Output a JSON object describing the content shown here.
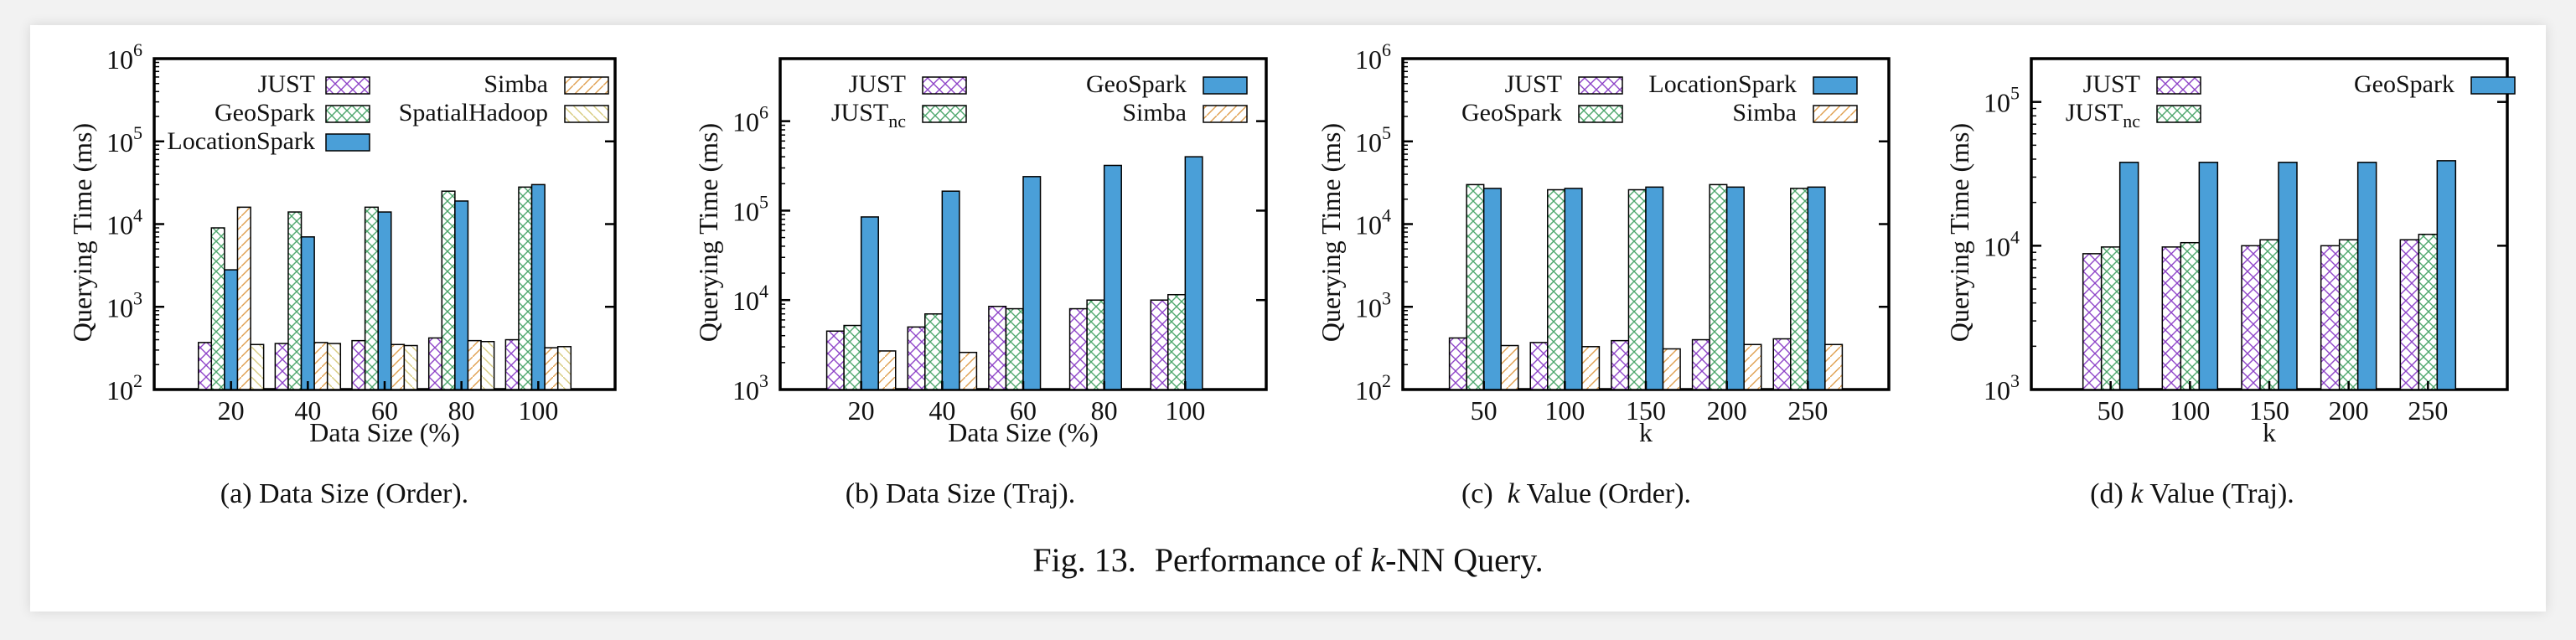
{
  "figure_caption": {
    "prefix": "Fig. 13.",
    "text_before": "Performance of ",
    "italic": "k",
    "text_after": "-NN Query."
  },
  "colors": {
    "JUST": "#8e44c8",
    "JUST_nc": "#4fa86e",
    "GeoSpark": "#4fa86e",
    "LocationSpark": "#4a9fd8",
    "Simba": "#e0a050",
    "SpatialHadoop": "#d8cc80",
    "geospark_fill_bd": "#4a9fd8"
  },
  "chart_data": [
    {
      "type": "bar",
      "subcaption": "(a)  Data Size (Order).",
      "xlabel": "Data Size (%)",
      "ylabel": "Querying Time (ms)",
      "yscale": "log",
      "ylim": [
        100,
        1000000
      ],
      "yticks": [
        {
          "base": "10",
          "exp": "2"
        },
        {
          "base": "10",
          "exp": "3"
        },
        {
          "base": "10",
          "exp": "4"
        },
        {
          "base": "10",
          "exp": "5"
        },
        {
          "base": "10",
          "exp": "6"
        }
      ],
      "categories": [
        "20",
        "40",
        "60",
        "80",
        "100"
      ],
      "series": [
        {
          "name": "JUST",
          "style": "hatch-purple",
          "values": [
            370,
            360,
            390,
            420,
            400
          ]
        },
        {
          "name": "GeoSpark",
          "style": "hatch-green",
          "values": [
            9000,
            14000,
            16000,
            25000,
            28000
          ]
        },
        {
          "name": "LocationSpark",
          "style": "solid-blue",
          "values": [
            2800,
            7000,
            14000,
            19000,
            30000
          ]
        },
        {
          "name": "Simba",
          "style": "hatch-orange",
          "values": [
            16000,
            370,
            350,
            390,
            320
          ]
        },
        {
          "name": "SpatialHadoop",
          "style": "hatch-yellow",
          "values": [
            350,
            360,
            340,
            380,
            330
          ]
        }
      ],
      "legend": "top"
    },
    {
      "type": "bar",
      "subcaption": "(b)  Data Size (Traj).",
      "xlabel": "Data Size (%)",
      "ylabel": "Querying Time (ms)",
      "yscale": "log",
      "ylim": [
        1000,
        5000000
      ],
      "yticks": [
        {
          "base": "10",
          "exp": "3"
        },
        {
          "base": "10",
          "exp": "4"
        },
        {
          "base": "10",
          "exp": "5"
        },
        {
          "base": "10",
          "exp": "6"
        }
      ],
      "categories": [
        "20",
        "40",
        "60",
        "80",
        "100"
      ],
      "series": [
        {
          "name": "JUST",
          "style": "hatch-purple",
          "values": [
            4500,
            5000,
            8500,
            8000,
            10000
          ]
        },
        {
          "name": "JUSTnc",
          "sub": "nc",
          "style": "hatch-green",
          "values": [
            5200,
            7000,
            8000,
            10000,
            11500
          ]
        },
        {
          "name": "GeoSpark",
          "style": "solid-blue",
          "values": [
            85000,
            165000,
            240000,
            320000,
            400000
          ]
        },
        {
          "name": "Simba",
          "style": "hatch-orange",
          "values": [
            2700,
            2600,
            null,
            null,
            null
          ]
        }
      ],
      "legend": "top"
    },
    {
      "type": "bar",
      "subcaption_prefix": "(c)  ",
      "subcaption_italic": "k",
      "subcaption_rest": "  Value (Order).",
      "xlabel": "k",
      "ylabel": "Querying Time (ms)",
      "yscale": "log",
      "ylim": [
        100,
        1000000
      ],
      "yticks": [
        {
          "base": "10",
          "exp": "2"
        },
        {
          "base": "10",
          "exp": "3"
        },
        {
          "base": "10",
          "exp": "4"
        },
        {
          "base": "10",
          "exp": "5"
        },
        {
          "base": "10",
          "exp": "6"
        }
      ],
      "categories": [
        "50",
        "100",
        "150",
        "200",
        "250"
      ],
      "series": [
        {
          "name": "JUST",
          "style": "hatch-purple",
          "values": [
            420,
            370,
            390,
            400,
            410
          ]
        },
        {
          "name": "GeoSpark",
          "style": "hatch-green",
          "values": [
            30000,
            26000,
            26000,
            30000,
            27000
          ]
        },
        {
          "name": "LocationSpark",
          "style": "solid-blue",
          "values": [
            27000,
            27000,
            28000,
            28000,
            28000
          ]
        },
        {
          "name": "Simba",
          "style": "hatch-orange",
          "values": [
            340,
            330,
            310,
            350,
            350
          ]
        }
      ],
      "legend": "top"
    },
    {
      "type": "bar",
      "subcaption_prefix": "(d)  ",
      "subcaption_italic": "k",
      "subcaption_rest": "  Value (Traj).",
      "xlabel": "k",
      "ylabel": "Querying Time (ms)",
      "yscale": "log",
      "ylim": [
        1000,
        200000
      ],
      "yticks": [
        {
          "base": "10",
          "exp": "3"
        },
        {
          "base": "10",
          "exp": "4"
        },
        {
          "base": "10",
          "exp": "5"
        }
      ],
      "categories": [
        "50",
        "100",
        "150",
        "200",
        "250"
      ],
      "series": [
        {
          "name": "JUST",
          "style": "hatch-purple",
          "values": [
            8800,
            9800,
            10000,
            10000,
            11000
          ]
        },
        {
          "name": "JUSTnc",
          "sub": "nc",
          "style": "hatch-green",
          "values": [
            9800,
            10500,
            11000,
            11000,
            12000
          ]
        },
        {
          "name": "GeoSpark",
          "style": "solid-blue",
          "values": [
            38000,
            38000,
            38000,
            38000,
            39000
          ]
        }
      ],
      "legend": "top"
    }
  ]
}
